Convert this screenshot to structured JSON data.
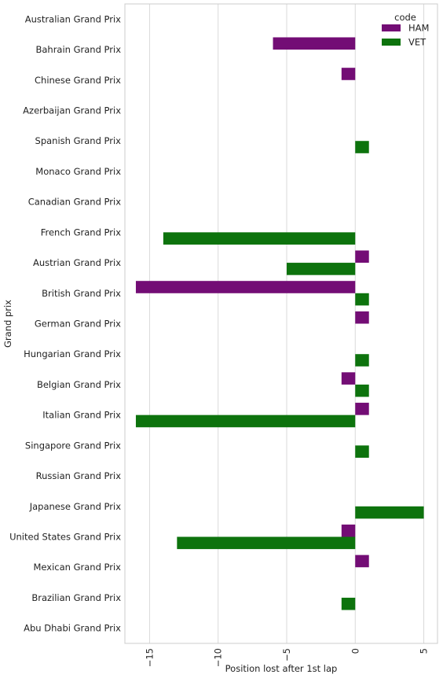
{
  "chart_data": {
    "type": "bar",
    "orientation": "horizontal",
    "title": "",
    "xlabel": "Position lost after 1st lap",
    "ylabel": "Grand prix",
    "xlim": [
      -16.8,
      6.0
    ],
    "xticks": [
      -15,
      -10,
      -5,
      0,
      5
    ],
    "xtick_labels": [
      "−15",
      "−10",
      "−5",
      "0",
      "5"
    ],
    "grid": true,
    "legend": {
      "title": "code",
      "position": "top-right"
    },
    "categories": [
      "Australian Grand Prix",
      "Bahrain Grand Prix",
      "Chinese Grand Prix",
      "Azerbaijan Grand Prix",
      "Spanish Grand Prix",
      "Monaco Grand Prix",
      "Canadian Grand Prix",
      "French Grand Prix",
      "Austrian Grand Prix",
      "British Grand Prix",
      "German Grand Prix",
      "Hungarian Grand Prix",
      "Belgian Grand Prix",
      "Italian Grand Prix",
      "Singapore Grand Prix",
      "Russian Grand Prix",
      "Japanese Grand Prix",
      "United States Grand Prix",
      "Mexican Grand Prix",
      "Brazilian Grand Prix",
      "Abu Dhabi Grand Prix"
    ],
    "series": [
      {
        "name": "HAM",
        "color": "#730d75",
        "values": [
          0,
          -6,
          -1,
          0,
          0,
          0,
          0,
          0,
          1,
          -16,
          1,
          0,
          -1,
          1,
          0,
          0,
          0,
          -1,
          1,
          0,
          0
        ]
      },
      {
        "name": "VET",
        "color": "#0d730d",
        "values": [
          0,
          0,
          0,
          0,
          1,
          0,
          0,
          -14,
          -5,
          1,
          0,
          1,
          1,
          -16,
          1,
          0,
          5,
          -13,
          0,
          -1,
          0
        ]
      }
    ]
  }
}
